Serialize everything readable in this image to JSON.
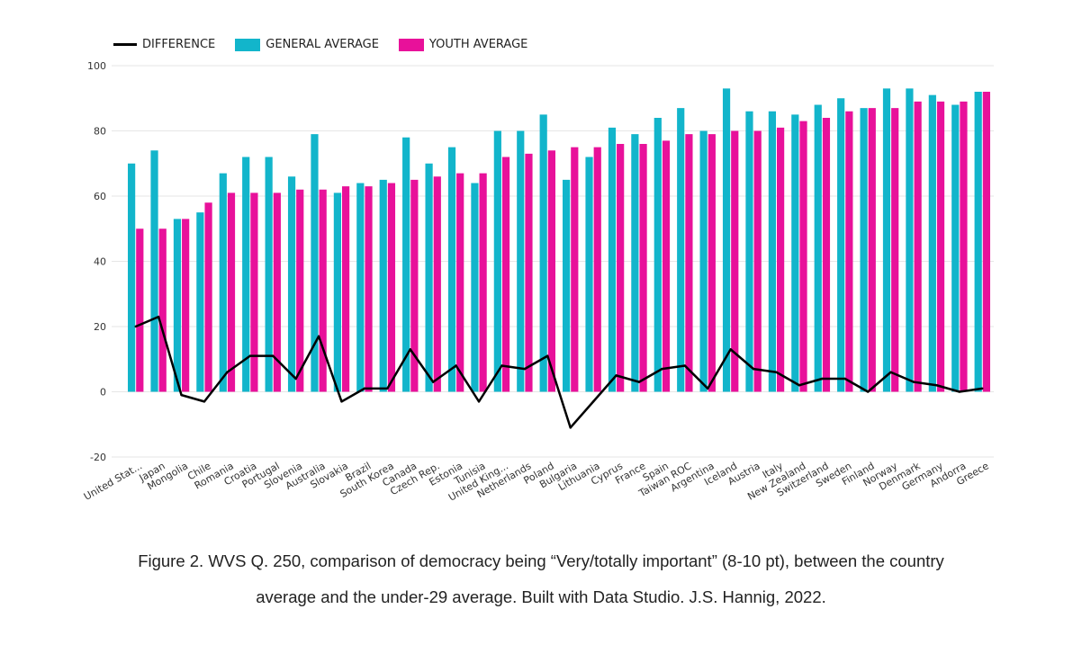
{
  "legend": {
    "difference_label": "DIFFERENCE",
    "general_label": "GENERAL AVERAGE",
    "youth_label": "YOUTH AVERAGE"
  },
  "colors": {
    "general": "#12b5cb",
    "youth": "#e8119a",
    "difference": "#000000",
    "grid": "#e6e6e6"
  },
  "caption": {
    "line1": "Figure 2. WVS Q. 250, comparison of democracy being “Very/totally important” (8-10 pt), between the country",
    "line2": "average and the under-29 average. Built with Data Studio. J.S. Hannig, 2022."
  },
  "chart_data": {
    "type": "bar",
    "title": "",
    "xlabel": "",
    "ylabel": "",
    "ylim": [
      -20,
      100
    ],
    "yticks": [
      -20,
      0,
      20,
      40,
      60,
      80,
      100
    ],
    "grid": true,
    "legend_position": "top-left",
    "categories": [
      "United Stat...",
      "Japan",
      "Mongolia",
      "Chile",
      "Romania",
      "Croatia",
      "Portugal",
      "Slovenia",
      "Australia",
      "Slovakia",
      "Brazil",
      "South Korea",
      "Canada",
      "Czech Rep.",
      "Estonia",
      "Tunisia",
      "United King...",
      "Netherlands",
      "Poland",
      "Bulgaria",
      "Lithuania",
      "Cyprus",
      "France",
      "Spain",
      "Taiwan ROC",
      "Argentina",
      "Iceland",
      "Austria",
      "Italy",
      "New Zealand",
      "Switzerland",
      "Sweden",
      "Finland",
      "Norway",
      "Denmark",
      "Germany",
      "Andorra",
      "Greece"
    ],
    "series": [
      {
        "name": "GENERAL AVERAGE",
        "type": "bar",
        "values": [
          70,
          74,
          53,
          55,
          67,
          72,
          72,
          66,
          79,
          61,
          64,
          65,
          78,
          70,
          75,
          64,
          80,
          80,
          85,
          65,
          72,
          81,
          79,
          84,
          87,
          80,
          93,
          86,
          86,
          85,
          88,
          90,
          87,
          93,
          93,
          91,
          88,
          92
        ]
      },
      {
        "name": "YOUTH AVERAGE",
        "type": "bar",
        "values": [
          50,
          50,
          53,
          58,
          61,
          61,
          61,
          62,
          62,
          63,
          63,
          64,
          65,
          66,
          67,
          67,
          72,
          73,
          74,
          75,
          75,
          76,
          76,
          77,
          79,
          79,
          80,
          80,
          81,
          83,
          84,
          86,
          87,
          87,
          89,
          89,
          89,
          92
        ]
      },
      {
        "name": "DIFFERENCE",
        "type": "line",
        "values": [
          20,
          23,
          -1,
          -3,
          6,
          11,
          11,
          4,
          17,
          -3,
          1,
          1,
          13,
          3,
          8,
          -3,
          8,
          7,
          11,
          -11,
          -3,
          5,
          3,
          7,
          8,
          1,
          13,
          7,
          6,
          2,
          4,
          4,
          0,
          6,
          3,
          2,
          0,
          1
        ]
      }
    ]
  }
}
